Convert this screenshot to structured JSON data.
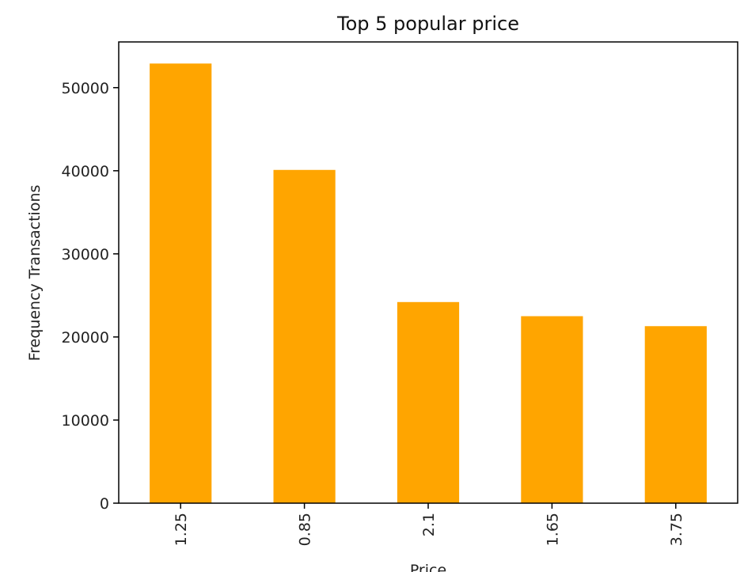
{
  "chart_data": {
    "type": "bar",
    "title": "Top 5 popular price",
    "xlabel": "Price",
    "ylabel": "Frequency Transactions",
    "categories": [
      "1.25",
      "0.85",
      "2.1",
      "1.65",
      "3.75"
    ],
    "values": [
      52900,
      40100,
      24200,
      22500,
      21300
    ],
    "ylim": [
      0,
      55500
    ],
    "yticks": [
      0,
      10000,
      20000,
      30000,
      40000,
      50000
    ],
    "ytick_labels": [
      "0",
      "10000",
      "20000",
      "30000",
      "40000",
      "50000"
    ],
    "bar_color": "#ffa500",
    "grid": false,
    "legend": "none"
  }
}
